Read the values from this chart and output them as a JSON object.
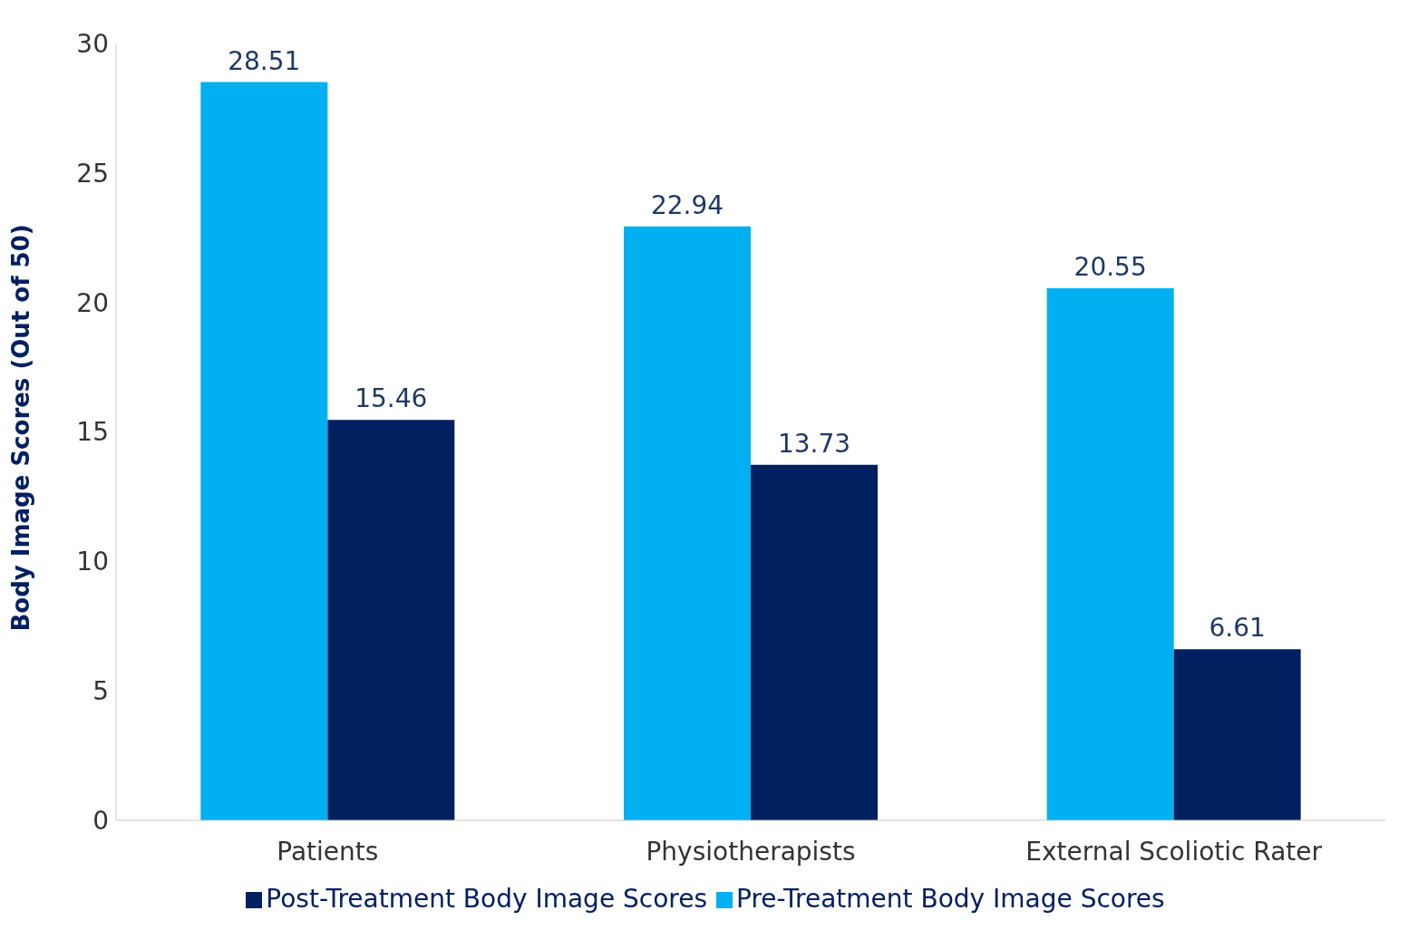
{
  "chart_data": {
    "type": "bar",
    "ylabel": "Body Image Scores (Out of 50)",
    "categories": [
      "Patients",
      "Physiotherapists",
      "External Scoliotic Rater"
    ],
    "series": [
      {
        "name": "Pre-Treatment Body Image Scores",
        "color": "#00b0f0",
        "values": [
          28.51,
          22.94,
          20.55
        ]
      },
      {
        "name": "Post-Treatment Body Image Scores",
        "color": "#002060",
        "values": [
          15.46,
          13.73,
          6.61
        ]
      }
    ],
    "ylim": [
      0,
      30
    ],
    "yticks": [
      0,
      5,
      10,
      15,
      20,
      25,
      30
    ],
    "grid": false,
    "legend": "bottom",
    "data_labels": true
  }
}
